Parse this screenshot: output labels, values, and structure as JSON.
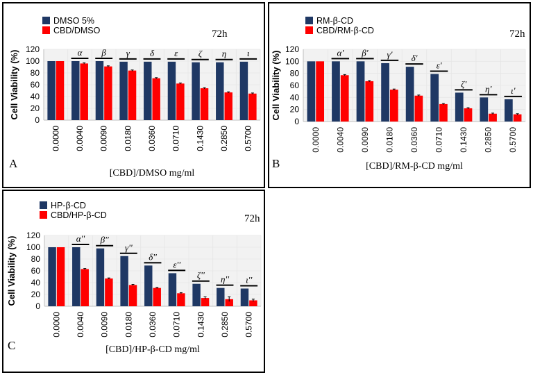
{
  "colors": {
    "control": "#1f3864",
    "treated": "#ff0000",
    "plot_bg": "#f2f2f2"
  },
  "chart_data": [
    {
      "type": "bar",
      "panel_label": "A",
      "time_label": "72h",
      "categories": [
        "0.0000",
        "0.0040",
        "0.0090",
        "0.0180",
        "0.0360",
        "0.0710",
        "0.1430",
        "0.2850",
        "0.5700"
      ],
      "series": [
        {
          "name": "DMSO 5%",
          "values": [
            100,
            100,
            100,
            99,
            99,
            99,
            98,
            98,
            99
          ]
        },
        {
          "name": "CBD/DMSO",
          "values": [
            100,
            96,
            91,
            84,
            71,
            62,
            54,
            47,
            45
          ],
          "errors": [
            0,
            1,
            1,
            1,
            1,
            1,
            1,
            1,
            1
          ]
        }
      ],
      "significance": [
        "",
        "α",
        "β",
        "γ",
        "δ",
        "ε",
        "ζ",
        "η",
        "ι"
      ],
      "ylabel": "Cell Viability (%)",
      "xlabel": "[CBD]/DMSO mg/ml",
      "yticks": [
        "0",
        "20",
        "40",
        "60",
        "80",
        "100",
        "120"
      ],
      "ylim": [
        0,
        120
      ]
    },
    {
      "type": "bar",
      "panel_label": "B",
      "time_label": "72h",
      "categories": [
        "0.0000",
        "0.0040",
        "0.0090",
        "0.0180",
        "0.0360",
        "0.0710",
        "0.1430",
        "0.2850",
        "0.5700"
      ],
      "series": [
        {
          "name": "RM-β-CD",
          "values": [
            100,
            100,
            100,
            97,
            91,
            79,
            48,
            40,
            37
          ]
        },
        {
          "name": "CBD/RM-β-CD",
          "values": [
            100,
            77,
            67,
            53,
            43,
            29,
            22,
            13,
            12
          ],
          "errors": [
            0,
            1,
            1,
            1,
            1,
            1,
            1,
            1,
            1
          ]
        }
      ],
      "significance": [
        "",
        "α'",
        "β'",
        "γ'",
        "δ'",
        "ε'",
        "ζ'",
        "η'",
        "ι'"
      ],
      "ylabel": "Cell Viability (%)",
      "xlabel": "[CBD]/RM-β-CD mg/ml",
      "yticks": [
        "0",
        "20",
        "40",
        "60",
        "80",
        "100",
        "120"
      ],
      "ylim": [
        0,
        120
      ]
    },
    {
      "type": "bar",
      "panel_label": "C",
      "time_label": "72h",
      "categories": [
        "0.0000",
        "0.0040",
        "0.0090",
        "0.0180",
        "0.0360",
        "0.0710",
        "0.1430",
        "0.2850",
        "0.5700"
      ],
      "series": [
        {
          "name": "HP-β-CD",
          "values": [
            100,
            100,
            98,
            85,
            69,
            56,
            38,
            31,
            30
          ]
        },
        {
          "name": "CBD/HP-β-CD",
          "values": [
            100,
            63,
            47,
            36,
            31,
            22,
            14,
            12,
            10
          ],
          "errors": [
            0,
            1,
            1,
            1,
            1,
            1,
            2,
            4,
            2
          ]
        }
      ],
      "significance": [
        "",
        "α''",
        "β''",
        "γ''",
        "δ''",
        "ε''",
        "ζ''",
        "η''",
        "ι''"
      ],
      "ylabel": "Cell Viability (%)",
      "xlabel": "[CBD]/HP-β-CD mg/ml",
      "yticks": [
        "0",
        "20",
        "40",
        "60",
        "80",
        "100",
        "120"
      ],
      "ylim": [
        0,
        120
      ]
    }
  ]
}
